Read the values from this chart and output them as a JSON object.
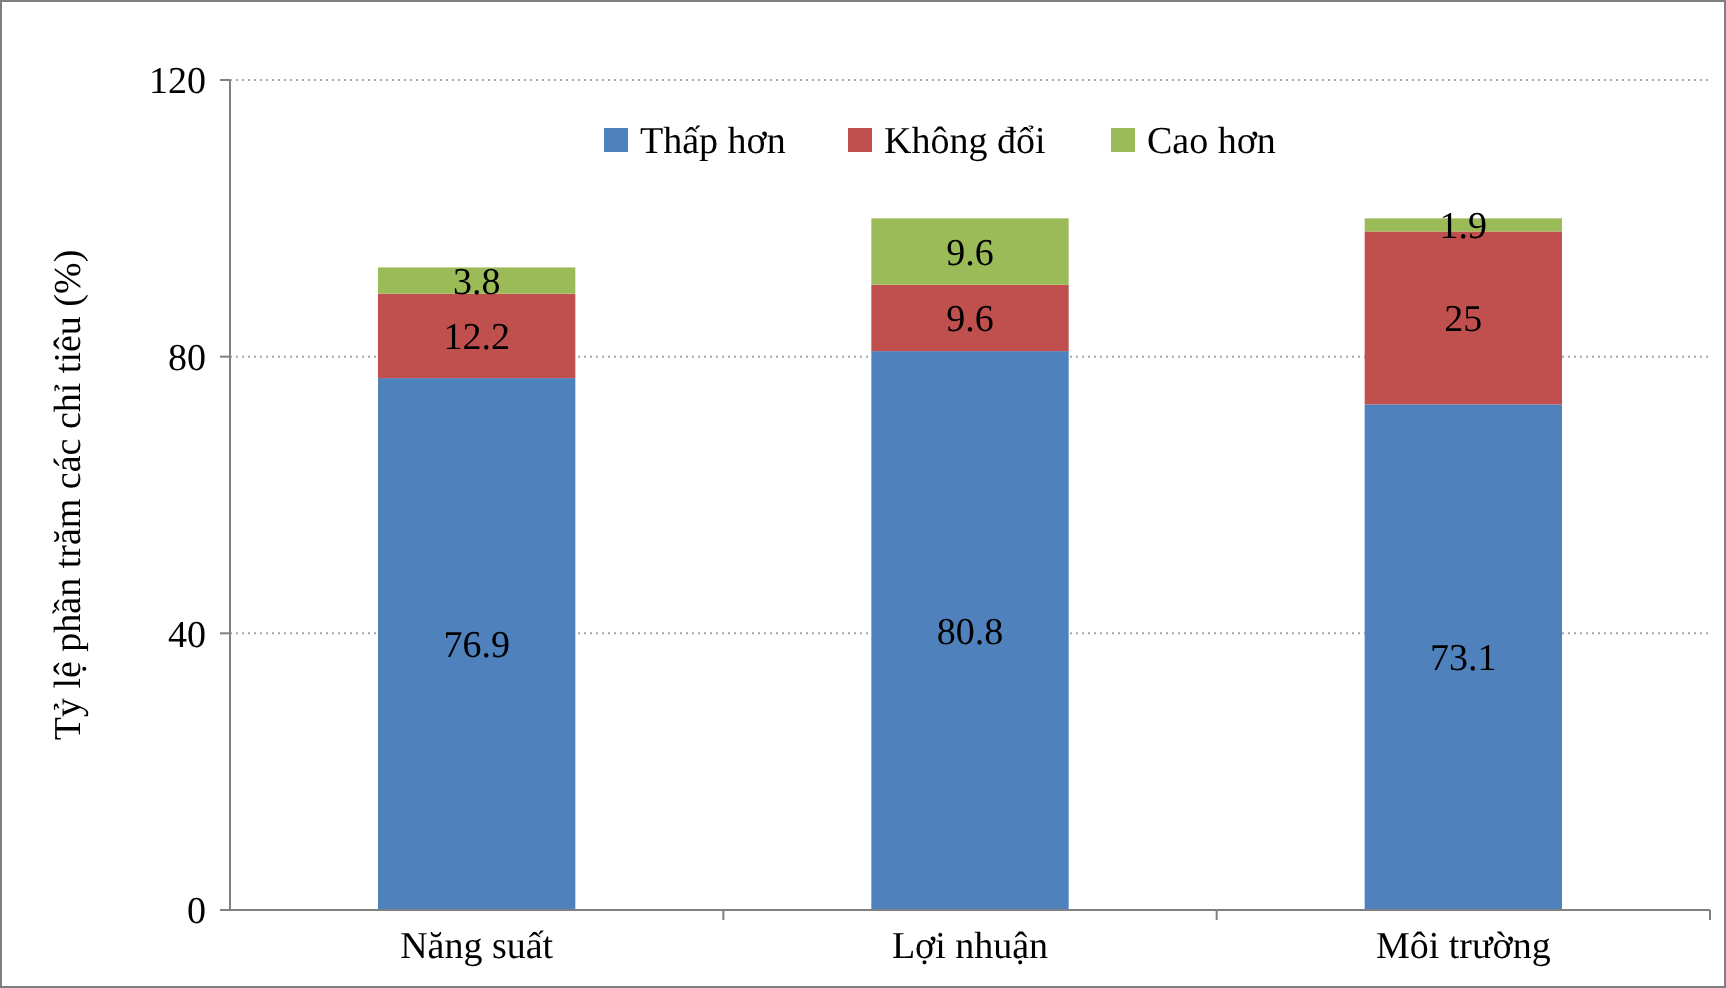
{
  "chart_data": {
    "type": "bar",
    "stacked": true,
    "ylabel": "Tỷ lệ phần trăm các chỉ tiêu (%)",
    "categories": [
      "Năng suất",
      "Lợi nhuận",
      "Môi trường"
    ],
    "series": [
      {
        "name": "Thấp hơn",
        "color": "#4f81bd",
        "values": [
          76.9,
          80.8,
          73.1
        ]
      },
      {
        "name": "Không đổi",
        "color": "#c0504d",
        "values": [
          12.2,
          9.6,
          25
        ]
      },
      {
        "name": "Cao hơn",
        "color": "#9bbb59",
        "values": [
          3.8,
          9.6,
          1.9
        ]
      }
    ],
    "ylim": [
      0,
      120
    ],
    "yticks": [
      0,
      40,
      80,
      120
    ],
    "grid": "y",
    "legend": "top",
    "data_labels": true
  }
}
